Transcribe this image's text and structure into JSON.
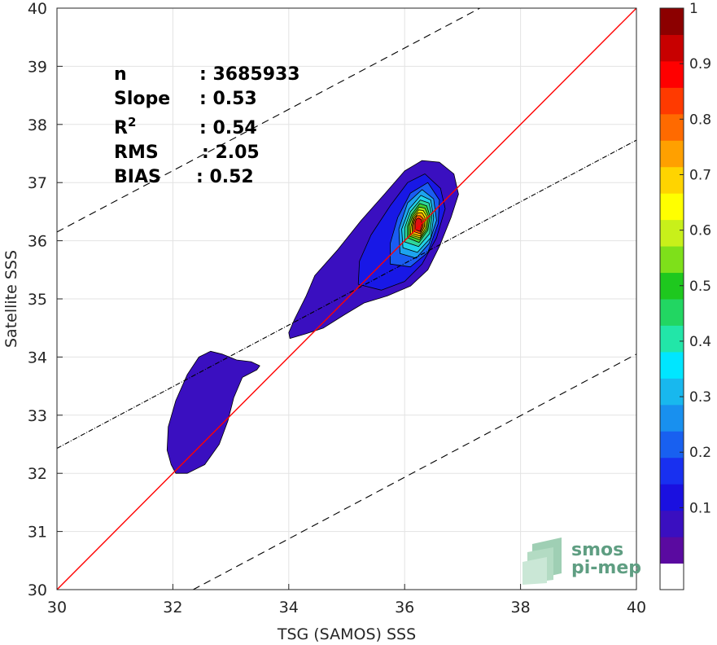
{
  "chart_data": {
    "type": "contour",
    "xlabel": "TSG (SAMOS) SSS",
    "ylabel": "Satellite SSS",
    "xlim": [
      30,
      40
    ],
    "ylim": [
      30,
      40
    ],
    "xticks": [
      "30",
      "32",
      "34",
      "36",
      "38",
      "40"
    ],
    "yticks": [
      "30",
      "31",
      "32",
      "33",
      "34",
      "35",
      "36",
      "37",
      "38",
      "39",
      "40"
    ],
    "grid": true,
    "stats": [
      {
        "key": "n",
        "value": ": 3685933"
      },
      {
        "key": "Slope",
        "value": ": 0.53"
      },
      {
        "key": "R",
        "sup": "2",
        "value": ": 0.54"
      },
      {
        "key": "RMS",
        "value": ": 2.05"
      },
      {
        "key": "BIAS",
        "value": ": 0.52"
      }
    ],
    "lines": {
      "identity": {
        "slope": 1,
        "intercept": 0,
        "color": "#ff0000",
        "style": "solid"
      },
      "regression": {
        "slope": 0.53,
        "x1": 30,
        "y1": 32.43,
        "x2": 40,
        "y2": 37.73,
        "color": "#000000",
        "style": "dashdot"
      },
      "upper_bound": {
        "x1": 30,
        "y1": 36.15,
        "x2": 37.3,
        "y2": 40,
        "color": "#000000",
        "style": "dashed"
      },
      "lower_bound": {
        "x1": 32.35,
        "y1": 30,
        "x2": 40,
        "y2": 34.05,
        "color": "#000000",
        "style": "dashed"
      }
    },
    "contours": [
      {
        "level": 0.05,
        "color": "#3a0fc0",
        "polygons": [
          [
            [
              32.05,
              32.0
            ],
            [
              32.25,
              32.0
            ],
            [
              32.55,
              32.15
            ],
            [
              32.8,
              32.5
            ],
            [
              32.95,
              32.9
            ],
            [
              33.05,
              33.3
            ],
            [
              33.2,
              33.65
            ],
            [
              33.45,
              33.78
            ],
            [
              33.5,
              33.85
            ],
            [
              33.35,
              33.92
            ],
            [
              33.1,
              33.95
            ],
            [
              32.85,
              34.05
            ],
            [
              32.65,
              34.1
            ],
            [
              32.45,
              34.0
            ],
            [
              32.25,
              33.7
            ],
            [
              32.05,
              33.25
            ],
            [
              31.92,
              32.8
            ],
            [
              31.9,
              32.4
            ],
            [
              31.97,
              32.15
            ]
          ],
          [
            [
              34.02,
              34.32
            ],
            [
              34.3,
              34.4
            ],
            [
              34.6,
              34.5
            ],
            [
              34.95,
              34.72
            ],
            [
              35.3,
              34.93
            ],
            [
              35.7,
              35.05
            ],
            [
              36.1,
              35.22
            ],
            [
              36.4,
              35.5
            ],
            [
              36.6,
              35.9
            ],
            [
              36.8,
              36.4
            ],
            [
              36.93,
              36.8
            ],
            [
              36.85,
              37.15
            ],
            [
              36.6,
              37.35
            ],
            [
              36.3,
              37.38
            ],
            [
              36.0,
              37.2
            ],
            [
              35.65,
              36.8
            ],
            [
              35.25,
              36.35
            ],
            [
              34.85,
              35.85
            ],
            [
              34.45,
              35.4
            ],
            [
              34.3,
              35.05
            ],
            [
              34.1,
              34.65
            ],
            [
              34.0,
              34.42
            ]
          ]
        ]
      },
      {
        "level": 0.1,
        "color": "#1818e6",
        "polygons": [
          [
            [
              35.2,
              35.25
            ],
            [
              35.6,
              35.15
            ],
            [
              36.0,
              35.3
            ],
            [
              36.3,
              35.6
            ],
            [
              36.55,
              36.05
            ],
            [
              36.7,
              36.55
            ],
            [
              36.62,
              36.9
            ],
            [
              36.35,
              37.15
            ],
            [
              36.05,
              37.0
            ],
            [
              35.75,
              36.6
            ],
            [
              35.42,
              36.1
            ],
            [
              35.22,
              35.65
            ]
          ]
        ]
      },
      {
        "level": 0.15,
        "color": "#1a5cf2",
        "polygons": [
          [
            [
              35.75,
              35.6
            ],
            [
              36.1,
              35.55
            ],
            [
              36.4,
              35.8
            ],
            [
              36.58,
              36.3
            ],
            [
              36.6,
              36.7
            ],
            [
              36.4,
              37.0
            ],
            [
              36.1,
              36.82
            ],
            [
              35.88,
              36.4
            ],
            [
              35.75,
              35.95
            ]
          ]
        ]
      },
      {
        "level": 0.2,
        "color": "#1da4ee",
        "polygons": [
          [
            [
              35.92,
              35.78
            ],
            [
              36.2,
              35.7
            ],
            [
              36.42,
              35.95
            ],
            [
              36.55,
              36.35
            ],
            [
              36.5,
              36.72
            ],
            [
              36.3,
              36.88
            ],
            [
              36.05,
              36.65
            ],
            [
              35.9,
              36.2
            ]
          ]
        ]
      },
      {
        "level": 0.25,
        "color": "#22d4e8",
        "polygons": [
          [
            [
              35.97,
              35.88
            ],
            [
              36.22,
              35.8
            ],
            [
              36.45,
              36.05
            ],
            [
              36.5,
              36.4
            ],
            [
              36.45,
              36.7
            ],
            [
              36.28,
              36.78
            ],
            [
              36.08,
              36.55
            ],
            [
              35.95,
              36.2
            ]
          ]
        ]
      },
      {
        "level": 0.3,
        "color": "#2ed79a",
        "polygons": [
          [
            [
              36.0,
              35.98
            ],
            [
              36.24,
              35.9
            ],
            [
              36.43,
              36.12
            ],
            [
              36.47,
              36.42
            ],
            [
              36.42,
              36.65
            ],
            [
              36.27,
              36.7
            ],
            [
              36.1,
              36.5
            ],
            [
              36.0,
              36.22
            ]
          ]
        ]
      },
      {
        "level": 0.4,
        "color": "#3dd034",
        "polygons": [
          [
            [
              36.05,
              36.05
            ],
            [
              36.25,
              35.97
            ],
            [
              36.4,
              36.18
            ],
            [
              36.44,
              36.42
            ],
            [
              36.38,
              36.6
            ],
            [
              36.26,
              36.64
            ],
            [
              36.12,
              36.45
            ],
            [
              36.05,
              36.25
            ]
          ]
        ]
      },
      {
        "level": 0.5,
        "color": "#a4e21a",
        "polygons": [
          [
            [
              36.08,
              36.08
            ],
            [
              36.26,
              36.02
            ],
            [
              36.38,
              36.2
            ],
            [
              36.41,
              36.42
            ],
            [
              36.35,
              36.56
            ],
            [
              36.25,
              36.58
            ],
            [
              36.14,
              36.43
            ],
            [
              36.08,
              36.26
            ]
          ]
        ]
      },
      {
        "level": 0.6,
        "color": "#ffee00",
        "polygons": [
          [
            [
              36.1,
              36.1
            ],
            [
              36.27,
              36.05
            ],
            [
              36.36,
              36.22
            ],
            [
              36.38,
              36.42
            ],
            [
              36.32,
              36.52
            ],
            [
              36.24,
              36.53
            ],
            [
              36.15,
              36.4
            ],
            [
              36.11,
              36.25
            ]
          ]
        ]
      },
      {
        "level": 0.7,
        "color": "#ffb300",
        "polygons": [
          [
            [
              36.13,
              36.12
            ],
            [
              36.27,
              36.08
            ],
            [
              36.34,
              36.24
            ],
            [
              36.35,
              36.4
            ],
            [
              36.3,
              36.48
            ],
            [
              36.23,
              36.48
            ],
            [
              36.16,
              36.38
            ],
            [
              36.13,
              36.26
            ]
          ]
        ]
      },
      {
        "level": 0.8,
        "color": "#ff5a00",
        "polygons": [
          [
            [
              36.15,
              36.16
            ],
            [
              36.27,
              36.12
            ],
            [
              36.32,
              36.25
            ],
            [
              36.32,
              36.38
            ],
            [
              36.27,
              36.43
            ],
            [
              36.21,
              36.43
            ],
            [
              36.17,
              36.35
            ],
            [
              36.15,
              36.26
            ]
          ]
        ]
      },
      {
        "level": 0.9,
        "color": "#e01010",
        "polygons": [
          [
            [
              36.18,
              36.19
            ],
            [
              36.27,
              36.16
            ],
            [
              36.3,
              36.27
            ],
            [
              36.29,
              36.36
            ],
            [
              36.24,
              36.39
            ],
            [
              36.2,
              36.37
            ],
            [
              36.18,
              36.3
            ]
          ]
        ]
      }
    ],
    "colorbar": {
      "ticks": [
        "0.1",
        "0.2",
        "0.3",
        "0.4",
        "0.5",
        "0.6",
        "0.7",
        "0.8",
        "0.9",
        "1"
      ],
      "levels": [
        0,
        0.05,
        0.1,
        0.15,
        0.2,
        0.25,
        0.3,
        0.35,
        0.4,
        0.45,
        0.5,
        0.55,
        0.6,
        0.65,
        0.7,
        0.75,
        0.8,
        0.85,
        0.9,
        0.95,
        1.0
      ],
      "colors": [
        "#ffffff",
        "#5a0aa0",
        "#3a0fc0",
        "#1a10e0",
        "#1830f0",
        "#1860f0",
        "#1890ef",
        "#18b8ee",
        "#00e6ff",
        "#22e6a8",
        "#22d662",
        "#1ec81e",
        "#7ee01a",
        "#c8f01a",
        "#ffff00",
        "#ffd400",
        "#ffa000",
        "#ff6a00",
        "#ff3a00",
        "#ff0000",
        "#c80000",
        "#8c0000"
      ]
    },
    "logo": {
      "line1": "smos",
      "line2": "pi-mep"
    }
  }
}
